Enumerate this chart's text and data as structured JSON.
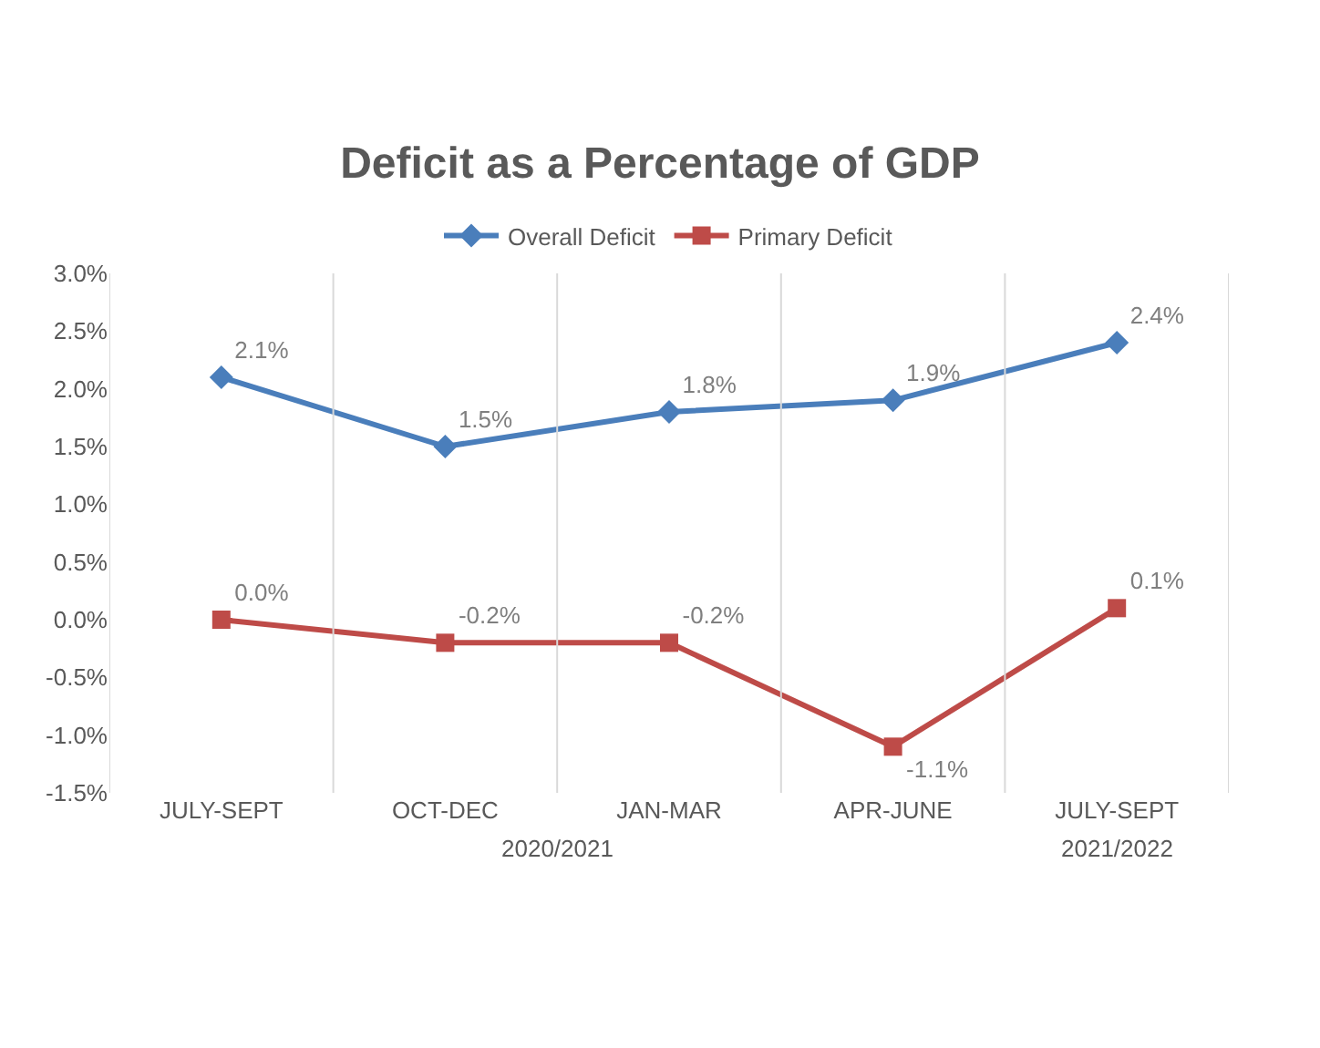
{
  "chart_data": {
    "type": "line",
    "title": "Deficit as a Percentage of GDP",
    "categories": [
      "JULY-SEPT",
      "OCT-DEC",
      "JAN-MAR",
      "APR-JUNE",
      "JULY-SEPT"
    ],
    "series": [
      {
        "name": "Overall Deficit",
        "color": "#4a7ebb",
        "marker": "diamond",
        "values": [
          2.1,
          1.5,
          1.8,
          1.9,
          2.4
        ],
        "value_labels": [
          "2.1%",
          "1.5%",
          "1.8%",
          "1.9%",
          "2.4%"
        ]
      },
      {
        "name": "Primary Deficit",
        "color": "#be4b48",
        "marker": "square",
        "values": [
          0.0,
          -0.2,
          -0.2,
          -1.1,
          0.1
        ],
        "value_labels": [
          "0.0%",
          "-0.2%",
          "-0.2%",
          "-1.1%",
          "0.1%"
        ]
      }
    ],
    "ylim": [
      -1.5,
      3.0
    ],
    "yticks": [
      {
        "value": -1.5,
        "label": "-1.5%"
      },
      {
        "value": -1.0,
        "label": "-1.0%"
      },
      {
        "value": -0.5,
        "label": "-0.5%"
      },
      {
        "value": 0,
        "label": "0.0%"
      },
      {
        "value": 0.5,
        "label": "0.5%"
      },
      {
        "value": 1.0,
        "label": "1.0%"
      },
      {
        "value": 1.5,
        "label": "1.5%"
      },
      {
        "value": 2.0,
        "label": "2.0%"
      },
      {
        "value": 2.5,
        "label": "2.5%"
      },
      {
        "value": 3.0,
        "label": "3.0%"
      }
    ],
    "annotations": [
      "2020/2021",
      "2021/2022"
    ],
    "grid": "x",
    "legend": "top",
    "line_style": "solid"
  }
}
